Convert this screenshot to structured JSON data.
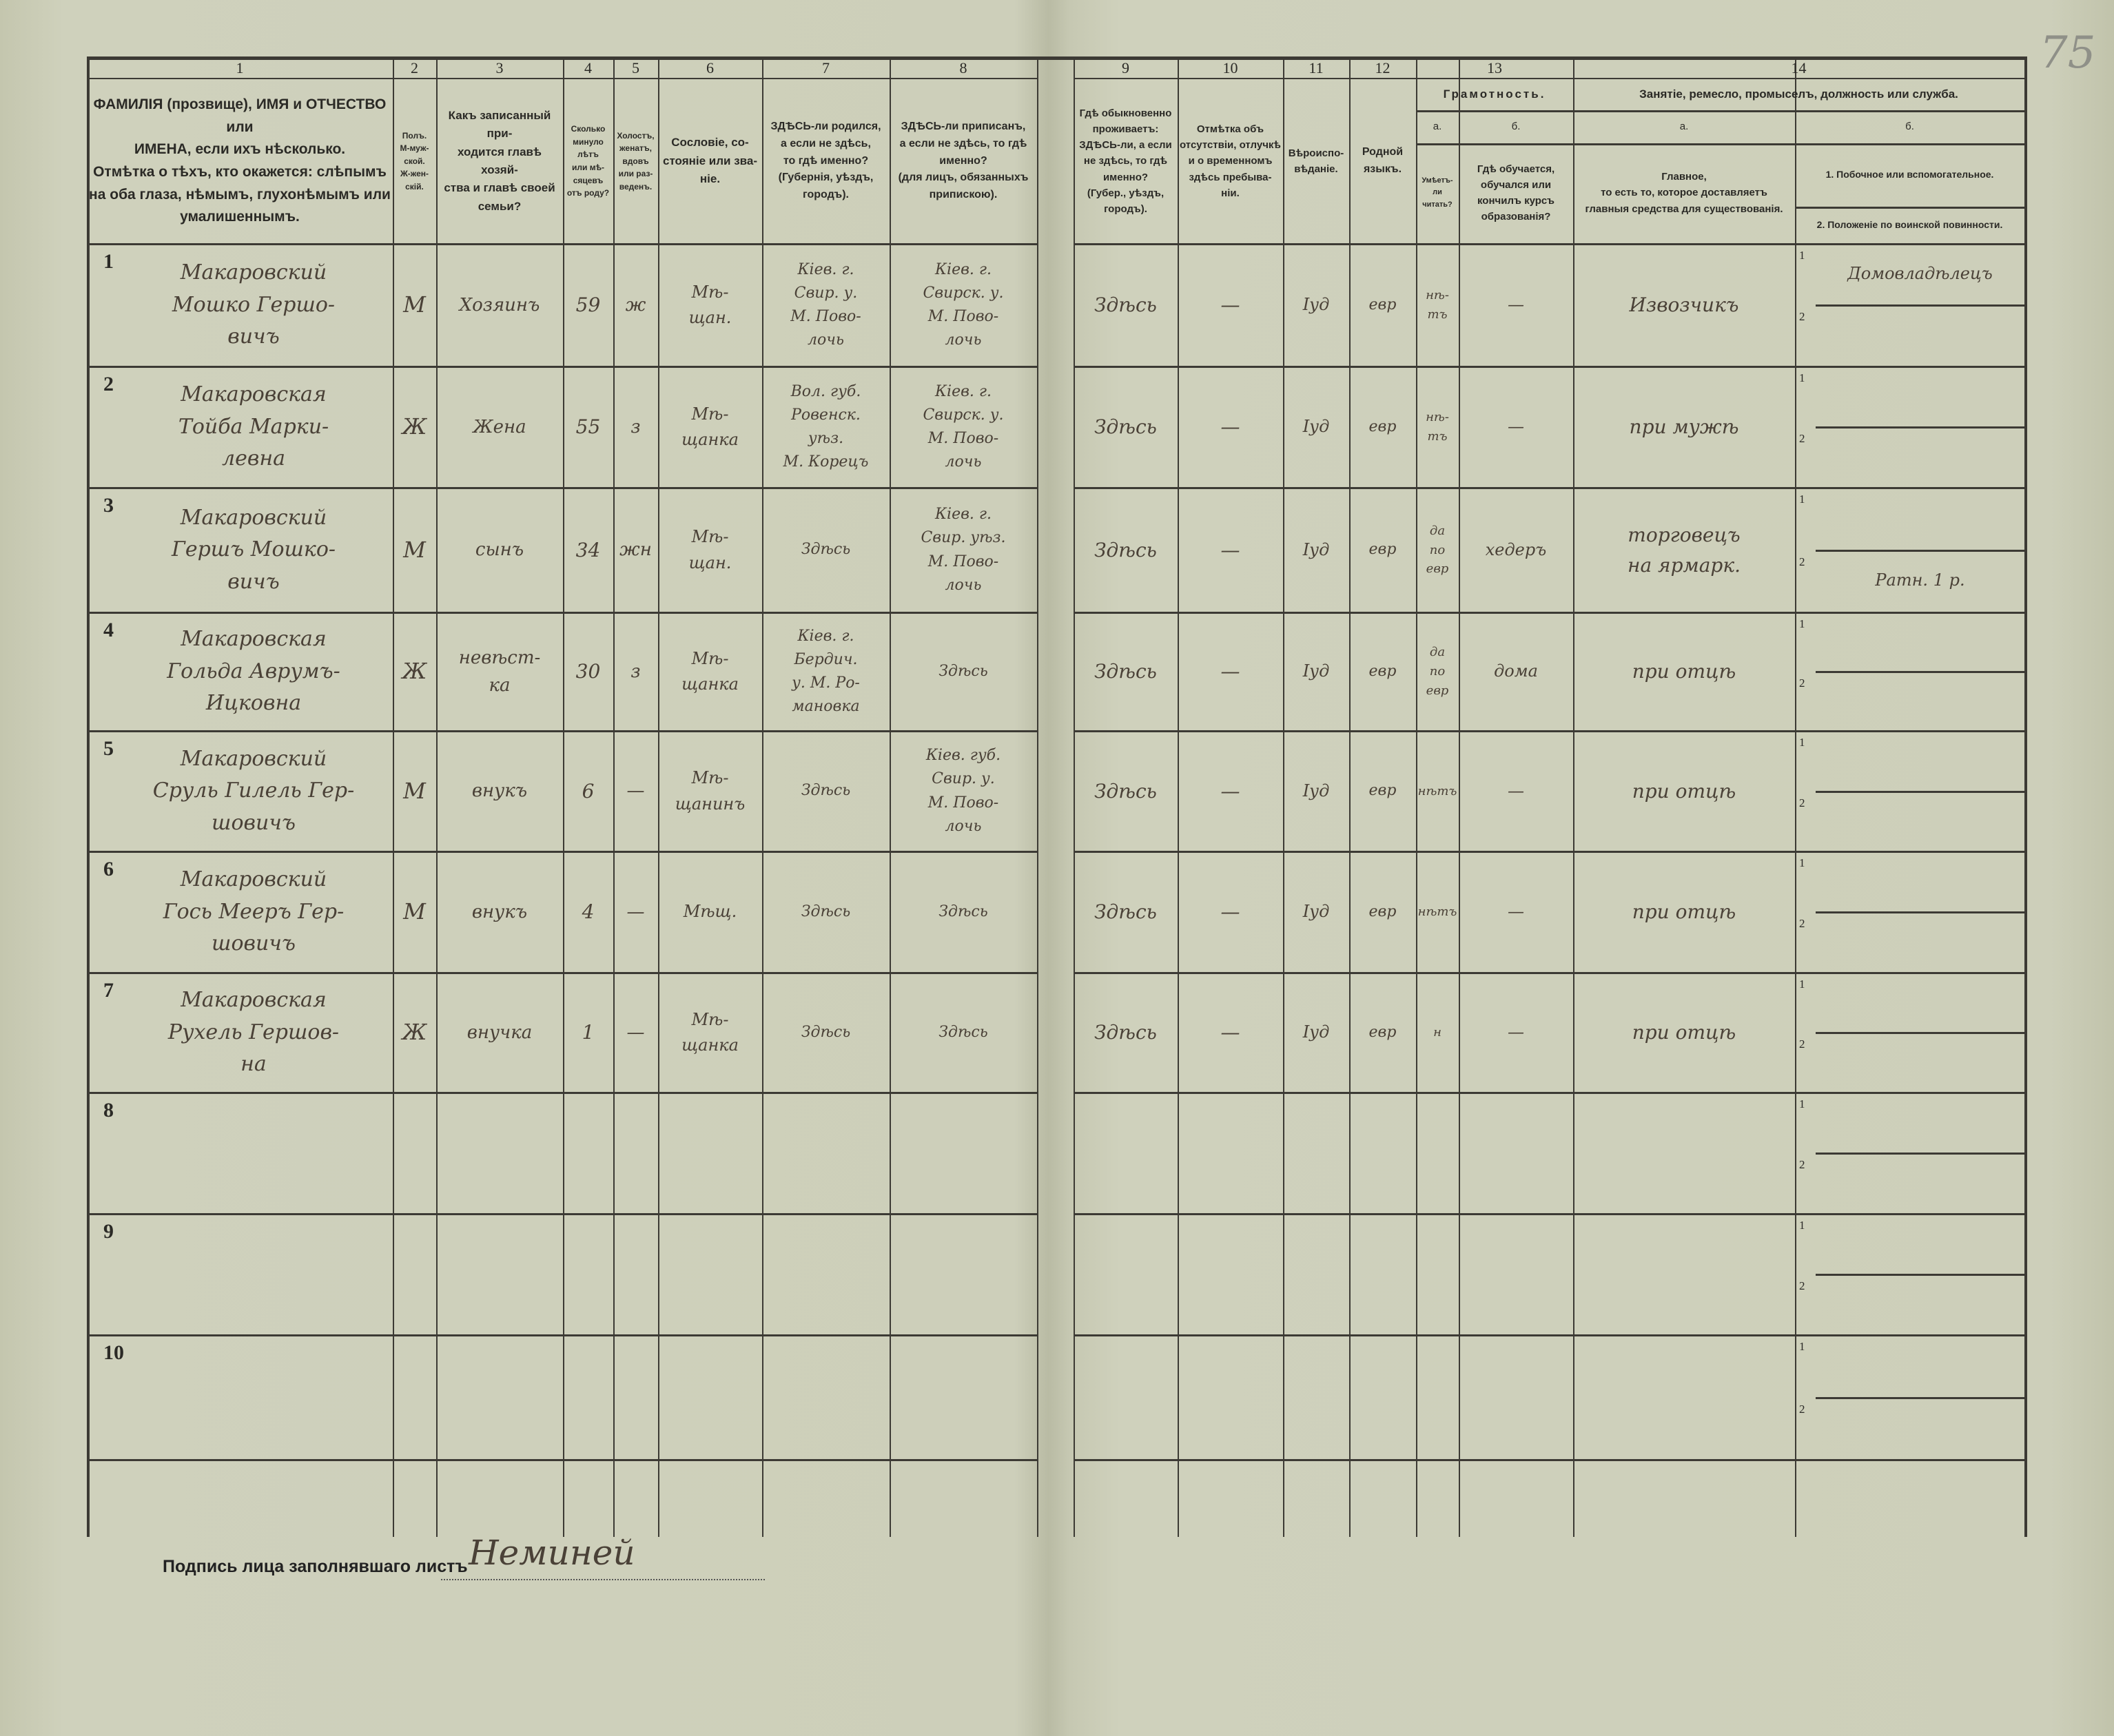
{
  "page_number": "75",
  "header": {
    "columns": [
      {
        "number": "1",
        "text": "ФАМИЛІЯ (прозвище), ИМЯ и ОТЧЕСТВО или\nИМЕНА, если ихъ нѣсколько.\nОтмѣтка о тѣхъ, кто окажется: слѣпымъ\nна оба глаза, нѣмымъ, глухонѣмымъ или\nумалишеннымъ."
      },
      {
        "number": "2",
        "text": "Полъ.\nМ-муж-\nской.\nЖ-жен-\nскій."
      },
      {
        "number": "3",
        "text": "Какъ записанный при-\nходится главѣ хозяй-\nства и главѣ своей\nсемьи?"
      },
      {
        "number": "4",
        "text": "Сколько\nминуло\nлѣтъ\nили мѣ-\nсяцевъ\nотъ роду?"
      },
      {
        "number": "5",
        "text": "Холостъ,\nженатъ,\nвдовъ\nили раз-\nведенъ."
      },
      {
        "number": "6",
        "text": "Сословіе, со-\nстояніе или зва-\nніе."
      },
      {
        "number": "7",
        "text": "ЗДѢСЬ-ли родился,\nа если не здѣсь,\nто гдѣ именно?\n(Губернія, уѣздъ, городъ)."
      },
      {
        "number": "8",
        "text": "ЗДѢСЬ-ли приписанъ,\nа если не здѣсь, то гдѣ\nименно?\n(для лицъ, обязанныхъ\nприпискою)."
      },
      {
        "number": "9",
        "text": "Гдѣ обыкновенно\nпроживаетъ:\nЗДѢСЬ-ли, а если\nне здѣсь, то гдѣ\nименно?\n(Губер., уѣздъ, городъ)."
      },
      {
        "number": "10",
        "text": "Отмѣтка объ\nотсутствіи, отлучкѣ\nи о временномъ\nздѣсь пребыва-\nніи."
      },
      {
        "number": "11",
        "text": "Вѣроиспо-\nвѣданіе."
      },
      {
        "number": "12",
        "text": "Родной\nязыкъ."
      }
    ],
    "literacy": {
      "number": "13",
      "title": "Грамотность.",
      "a_label": "а.",
      "b_label": "б.",
      "a_text": "Умѣетъ-\nли\nчитать?",
      "b_text": "Гдѣ обучается,\nобучался или\nкончилъ курсъ\nобразованія?"
    },
    "occupation": {
      "number": "14",
      "title": "Занятіе, ремесло, промыселъ, должность или служба.",
      "a_label": "а.",
      "b_label": "б.",
      "a_text": "Главное,\nто есть то, которое доставляетъ\nглавныя средства для существованія.",
      "b1_text": "1.  Побочное или вспомогательное.",
      "b2_text": "2.  Положеніе по воинской повинности."
    }
  },
  "subrow_labels": [
    "1",
    "2"
  ],
  "rows": [
    {
      "n": "1",
      "name": "Макаровский\nМошко Гершо-\nвичъ",
      "sex": "М",
      "relation": "Хозяинъ",
      "age": "59",
      "marital": "ж",
      "estate": "Мѣ-\nщан.",
      "born": "Кiев. г.\nСвир. у.\nМ. Пово-\nлочь",
      "registered": "Кiев. г.\nСвирск. у.\nМ. Пово-\nлочь",
      "residence": "Здѣсь",
      "absence": "—",
      "religion": "Iуд",
      "language": "евр",
      "can_read": "нѣ-\nтъ",
      "schooling": "—",
      "occupation_main": "Извозчикъ",
      "occupation_secondary": "Домовладѣлецъ",
      "military": ""
    },
    {
      "n": "2",
      "name": "Макаровская\nТойба Марки-\nлевна",
      "sex": "Ж",
      "relation": "Жена",
      "age": "55",
      "marital": "з",
      "estate": "Мѣ-\nщанка",
      "born": "Вол. губ.\nРовенск.\nуѣз.\nМ. Корецъ",
      "registered": "Кiев. г.\nСвирск. у.\nМ. Пово-\nлочь",
      "residence": "Здѣсь",
      "absence": "—",
      "religion": "Iуд",
      "language": "евр",
      "can_read": "нѣ-\nтъ",
      "schooling": "—",
      "occupation_main": "при мужѣ",
      "occupation_secondary": "",
      "military": ""
    },
    {
      "n": "3",
      "name": "Макаровский\nГершъ Мошко-\nвичъ",
      "sex": "М",
      "relation": "сынъ",
      "age": "34",
      "marital": "жн",
      "estate": "Мѣ-\nщан.",
      "born": "Здѣсь",
      "registered": "Кiев. г.\nСвир. уѣз.\nМ. Пово-\nлочь",
      "residence": "Здѣсь",
      "absence": "—",
      "religion": "Iуд",
      "language": "евр",
      "can_read": "да\nпо\nевр",
      "schooling": "хедеръ",
      "occupation_main": "торговецъ\nна ярмарк.",
      "occupation_secondary": "",
      "military": "Ратн. 1 р."
    },
    {
      "n": "4",
      "name": "Макаровская\nГольда Аврумъ-\nИцковна",
      "sex": "Ж",
      "relation": "невѣст-\nка",
      "age": "30",
      "marital": "з",
      "estate": "Мѣ-\nщанка",
      "born": "Кiев. г.\nБердич.\nу. М. Ро-\nмановка",
      "registered": "Здѣсь",
      "residence": "Здѣсь",
      "absence": "—",
      "religion": "Iуд",
      "language": "евр",
      "can_read": "да\nпо\nевр",
      "schooling": "дома",
      "occupation_main": "при отцѣ",
      "occupation_secondary": "",
      "military": ""
    },
    {
      "n": "5",
      "name": "Макаровский\nСруль Гилель Гер-\nшовичъ",
      "sex": "М",
      "relation": "внукъ",
      "age": "6",
      "marital": "—",
      "estate": "Мѣ-\nщанинъ",
      "born": "Здѣсь",
      "registered": "Кiев. губ.\nСвир. у.\nМ. Пово-\nлочь",
      "residence": "Здѣсь",
      "absence": "—",
      "religion": "Iуд",
      "language": "евр",
      "can_read": "нѣтъ",
      "schooling": "—",
      "occupation_main": "при отцѣ",
      "occupation_secondary": "",
      "military": ""
    },
    {
      "n": "6",
      "name": "Макаровский\nГось Мееръ Гер-\nшовичъ",
      "sex": "М",
      "relation": "внукъ",
      "age": "4",
      "marital": "—",
      "estate": "Мѣщ.",
      "born": "Здѣсь",
      "registered": "Здѣсь",
      "residence": "Здѣсь",
      "absence": "—",
      "religion": "Iуд",
      "language": "евр",
      "can_read": "нѣтъ",
      "schooling": "—",
      "occupation_main": "при отцѣ",
      "occupation_secondary": "",
      "military": ""
    },
    {
      "n": "7",
      "name": "Макаровская\nРухель Гершов-\nна",
      "sex": "Ж",
      "relation": "внучка",
      "age": "1",
      "marital": "—",
      "estate": "Мѣ-\nщанка",
      "born": "Здѣсь",
      "registered": "Здѣсь",
      "residence": "Здѣсь",
      "absence": "—",
      "religion": "Iуд",
      "language": "евр",
      "can_read": "н",
      "schooling": "—",
      "occupation_main": "при отцѣ",
      "occupation_secondary": "",
      "military": ""
    },
    {
      "n": "8"
    },
    {
      "n": "9"
    },
    {
      "n": "10"
    }
  ],
  "footer": {
    "signature_label": "Подпись лица заполнявшаго листъ",
    "signature": "Неминей"
  }
}
